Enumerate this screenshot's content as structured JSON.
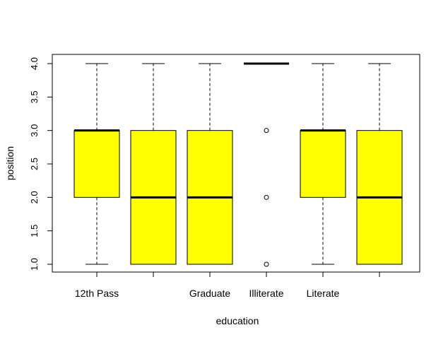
{
  "chart_data": {
    "type": "boxplot",
    "title": "",
    "xlabel": "education",
    "ylabel": "position",
    "ylim": [
      1,
      4
    ],
    "grid": false,
    "box_fill": "#ffff00",
    "categories": [
      "12th Pass",
      "",
      "Graduate",
      "Illiterate",
      "Literate",
      ""
    ],
    "boxes": [
      {
        "whisker_low": 1,
        "q1": 2,
        "median": 3,
        "q3": 3,
        "whisker_high": 4,
        "outliers": []
      },
      {
        "whisker_low": 1,
        "q1": 1,
        "median": 2,
        "q3": 3,
        "whisker_high": 4,
        "outliers": []
      },
      {
        "whisker_low": 1,
        "q1": 1,
        "median": 2,
        "q3": 3,
        "whisker_high": 4,
        "outliers": []
      },
      {
        "whisker_low": 4,
        "q1": 4,
        "median": 4,
        "q3": 4,
        "whisker_high": 4,
        "outliers": [
          1,
          2,
          3
        ]
      },
      {
        "whisker_low": 1,
        "q1": 2,
        "median": 3,
        "q3": 3,
        "whisker_high": 4,
        "outliers": []
      },
      {
        "whisker_low": 1,
        "q1": 1,
        "median": 2,
        "q3": 3,
        "whisker_high": 4,
        "outliers": []
      }
    ],
    "y_ticks": [
      "1.0",
      "1.5",
      "2.0",
      "2.5",
      "3.0",
      "3.5",
      "4.0"
    ]
  }
}
